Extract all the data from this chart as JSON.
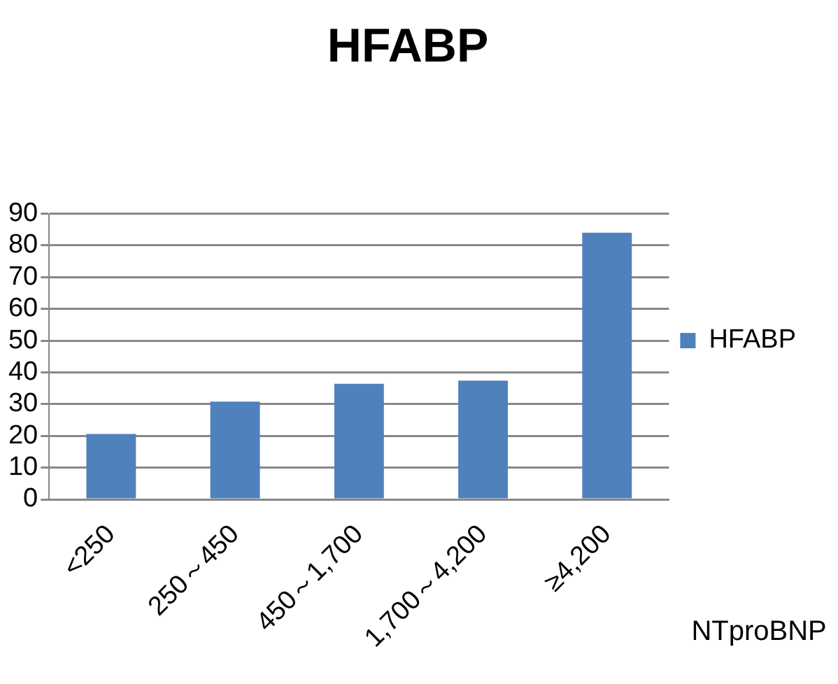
{
  "chart_data": {
    "type": "bar",
    "title": "HFABP",
    "xlabel": "NTproBNP",
    "categories": [
      "<250",
      "250～450",
      "450～1,700",
      "1,700～4,200",
      "≥4,200"
    ],
    "series": [
      {
        "name": "HFABP",
        "color": "#4f81bd",
        "values": [
          20.6,
          30.8,
          36.4,
          37.4,
          84.0
        ]
      }
    ],
    "ylim": [
      0,
      90
    ],
    "yticks": [
      0,
      10,
      20,
      30,
      40,
      50,
      60,
      70,
      80,
      90
    ],
    "grid": "y",
    "legend": "right"
  }
}
